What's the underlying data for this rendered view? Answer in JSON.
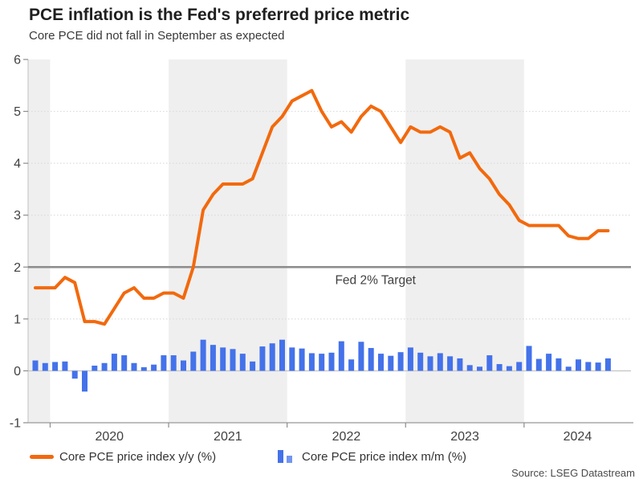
{
  "header": {
    "title": "PCE inflation is the Fed's preferred price metric",
    "subtitle": "Core PCE did not fall in September as expected"
  },
  "colors": {
    "line_orange": "#F2690D",
    "bar_blue": "#4472EA",
    "bar_blue_light": "#7396EF",
    "band_gray": "#EFEFEF",
    "grid_dot": "#DBDBDB",
    "zero_line": "#C8C8C8",
    "axis_line": "#A9A9A9",
    "tick": "#8C8C8C",
    "target_line": "#8F8F8F",
    "axis_text": "#404040"
  },
  "chart_data": {
    "type": "line+bar",
    "title": "PCE inflation is the Fed's preferred price metric",
    "subtitle": "Core PCE did not fall in September as expected",
    "ylim": [
      -1,
      6
    ],
    "yticks": [
      6,
      5,
      4,
      3,
      2,
      1,
      0,
      -1
    ],
    "xtick_labels": [
      "2020",
      "2021",
      "2022",
      "2023",
      "2024"
    ],
    "grid": "dotted horizontal at 5,4,3,1; solid at 0",
    "background_bands": "alternating light-gray/white per calendar year",
    "target_line": {
      "value": 2,
      "label": "Fed 2% Target"
    },
    "legend_position": "bottom",
    "months": [
      "2019-11",
      "2019-12",
      "2020-01",
      "2020-02",
      "2020-03",
      "2020-04",
      "2020-05",
      "2020-06",
      "2020-07",
      "2020-08",
      "2020-09",
      "2020-10",
      "2020-11",
      "2020-12",
      "2021-01",
      "2021-02",
      "2021-03",
      "2021-04",
      "2021-05",
      "2021-06",
      "2021-07",
      "2021-08",
      "2021-09",
      "2021-10",
      "2021-11",
      "2021-12",
      "2022-01",
      "2022-02",
      "2022-03",
      "2022-04",
      "2022-05",
      "2022-06",
      "2022-07",
      "2022-08",
      "2022-09",
      "2022-10",
      "2022-11",
      "2022-12",
      "2023-01",
      "2023-02",
      "2023-03",
      "2023-04",
      "2023-05",
      "2023-06",
      "2023-07",
      "2023-08",
      "2023-09",
      "2023-10",
      "2023-11",
      "2023-12",
      "2024-01",
      "2024-02",
      "2024-03",
      "2024-04",
      "2024-05",
      "2024-06",
      "2024-07",
      "2024-08",
      "2024-09"
    ],
    "series": [
      {
        "name": "Core PCE price index y/y (%)",
        "type": "line",
        "color": "#F2690D",
        "values": [
          1.6,
          1.6,
          1.6,
          1.8,
          1.7,
          0.95,
          0.95,
          0.9,
          1.2,
          1.5,
          1.6,
          1.4,
          1.4,
          1.5,
          1.5,
          1.4,
          2.0,
          3.1,
          3.4,
          3.6,
          3.6,
          3.6,
          3.7,
          4.2,
          4.7,
          4.9,
          5.2,
          5.3,
          5.4,
          5.0,
          4.7,
          4.8,
          4.6,
          4.9,
          5.1,
          5.0,
          4.7,
          4.4,
          4.7,
          4.6,
          4.6,
          4.7,
          4.6,
          4.1,
          4.2,
          3.9,
          3.7,
          3.4,
          3.2,
          2.9,
          2.8,
          2.8,
          2.8,
          2.8,
          2.6,
          2.55,
          2.55,
          2.7,
          2.7
        ]
      },
      {
        "name": "Core PCE price index m/m (%)",
        "type": "bar",
        "color": "#4472EA",
        "values": [
          0.2,
          0.15,
          0.17,
          0.18,
          -0.15,
          -0.4,
          0.1,
          0.15,
          0.33,
          0.3,
          0.15,
          0.07,
          0.12,
          0.3,
          0.3,
          0.2,
          0.37,
          0.6,
          0.5,
          0.45,
          0.42,
          0.33,
          0.18,
          0.47,
          0.53,
          0.6,
          0.45,
          0.43,
          0.34,
          0.33,
          0.35,
          0.57,
          0.22,
          0.56,
          0.44,
          0.33,
          0.29,
          0.36,
          0.45,
          0.35,
          0.28,
          0.34,
          0.28,
          0.24,
          0.11,
          0.08,
          0.3,
          0.13,
          0.09,
          0.17,
          0.48,
          0.23,
          0.33,
          0.24,
          0.08,
          0.22,
          0.17,
          0.16,
          0.24
        ]
      }
    ]
  },
  "legend": {
    "items": [
      {
        "label": "Core PCE price index y/y (%)",
        "swatch": "orange-line"
      },
      {
        "label": "Core PCE price index m/m (%)",
        "swatch": "blue-bars"
      }
    ]
  },
  "source": "Source: LSEG Datastream"
}
